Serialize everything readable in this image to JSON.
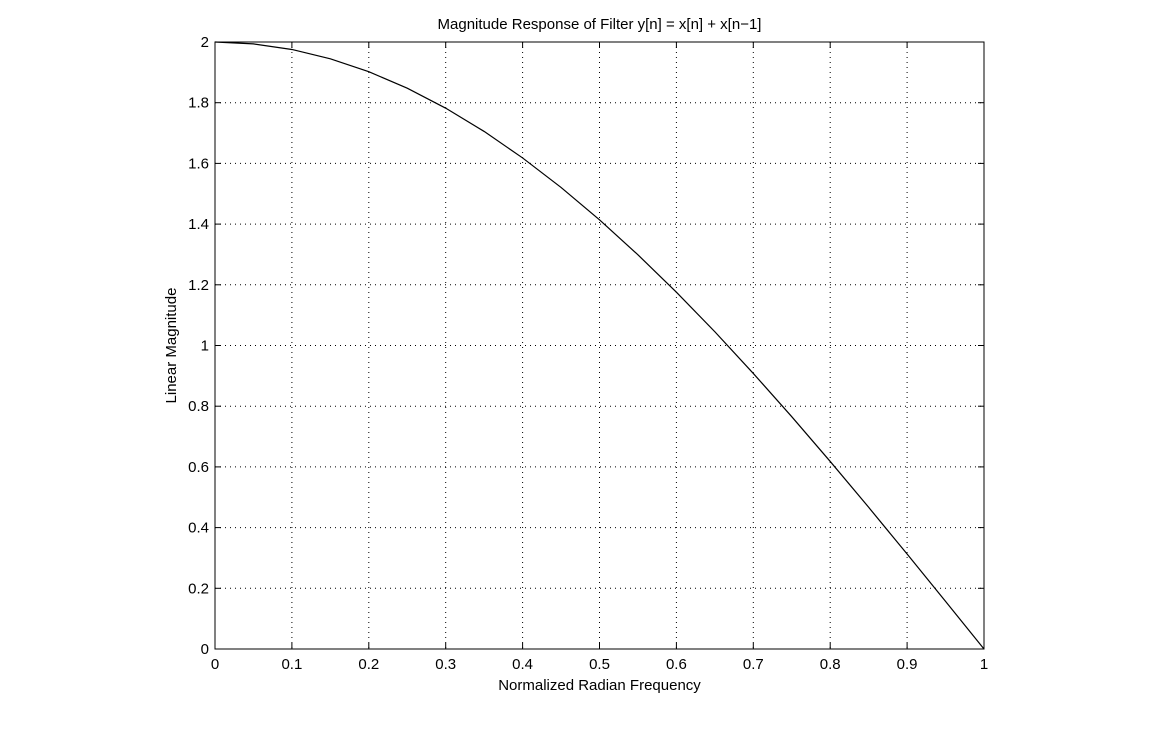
{
  "chart_data": {
    "type": "line",
    "title": "Magnitude Response of Filter y[n] = x[n] + x[n−1]",
    "xlabel": "Normalized Radian Frequency",
    "ylabel": "Linear Magnitude",
    "xlim": [
      0,
      1
    ],
    "ylim": [
      0,
      2
    ],
    "x_ticks": [
      0,
      0.1,
      0.2,
      0.3,
      0.4,
      0.5,
      0.6,
      0.7,
      0.8,
      0.9,
      1
    ],
    "x_tick_labels": [
      "0",
      "0.1",
      "0.2",
      "0.3",
      "0.4",
      "0.5",
      "0.6",
      "0.7",
      "0.8",
      "0.9",
      "1"
    ],
    "y_ticks": [
      0,
      0.2,
      0.4,
      0.6,
      0.8,
      1,
      1.2,
      1.4,
      1.6,
      1.8,
      2
    ],
    "y_tick_labels": [
      "0",
      "0.2",
      "0.4",
      "0.6",
      "0.8",
      "1",
      "1.2",
      "1.4",
      "1.6",
      "1.8",
      "2"
    ],
    "grid": true,
    "series": [
      {
        "color": "#000000",
        "x": [
          0,
          0.05,
          0.1,
          0.15,
          0.2,
          0.25,
          0.3,
          0.35,
          0.4,
          0.45,
          0.5,
          0.55,
          0.6,
          0.65,
          0.7,
          0.75,
          0.8,
          0.85,
          0.9,
          0.95,
          1
        ],
        "y": [
          2,
          1.9938,
          1.9754,
          1.9447,
          1.9021,
          1.8478,
          1.782,
          1.7053,
          1.618,
          1.5208,
          1.4142,
          1.2989,
          1.1756,
          1.0453,
          0.908,
          0.7654,
          0.618,
          0.4669,
          0.3129,
          0.1569,
          0
        ]
      }
    ]
  }
}
